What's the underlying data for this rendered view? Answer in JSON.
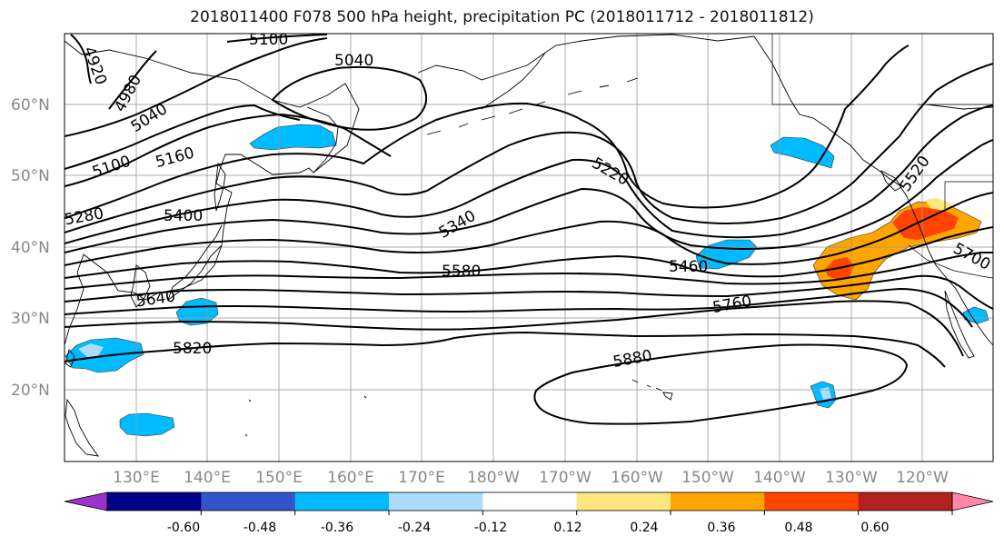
{
  "figure": {
    "title": "2018011400 F078 500 hPa height, precipitation PC (2018011712 - 2018011812)"
  },
  "axes": {
    "lat_ticks": [
      "20°N",
      "30°N",
      "40°N",
      "50°N",
      "60°N"
    ],
    "lon_ticks": [
      "130°E",
      "140°E",
      "150°E",
      "160°E",
      "170°E",
      "180°W",
      "170°W",
      "160°W",
      "150°W",
      "140°W",
      "130°W",
      "120°W"
    ],
    "grid": true
  },
  "contours": {
    "labels": [
      "4920",
      "4980",
      "5040",
      "5040",
      "5100",
      "5100",
      "5160",
      "5220",
      "5280",
      "5340",
      "5400",
      "5460",
      "5520",
      "5580",
      "5640",
      "5700",
      "5760",
      "5820",
      "5880"
    ]
  },
  "colorbar": {
    "ticks": [
      "-0.60",
      "-0.48",
      "-0.36",
      "-0.24",
      "-0.12",
      "0.12",
      "0.24",
      "0.36",
      "0.48",
      "0.60"
    ],
    "colors": [
      "#9933cc",
      "#000088",
      "#3355cc",
      "#00bbff",
      "#aaddff",
      "#ffffff",
      "#ffe680",
      "#ffa500",
      "#ff4400",
      "#b22222",
      "#ff88aa"
    ]
  }
}
